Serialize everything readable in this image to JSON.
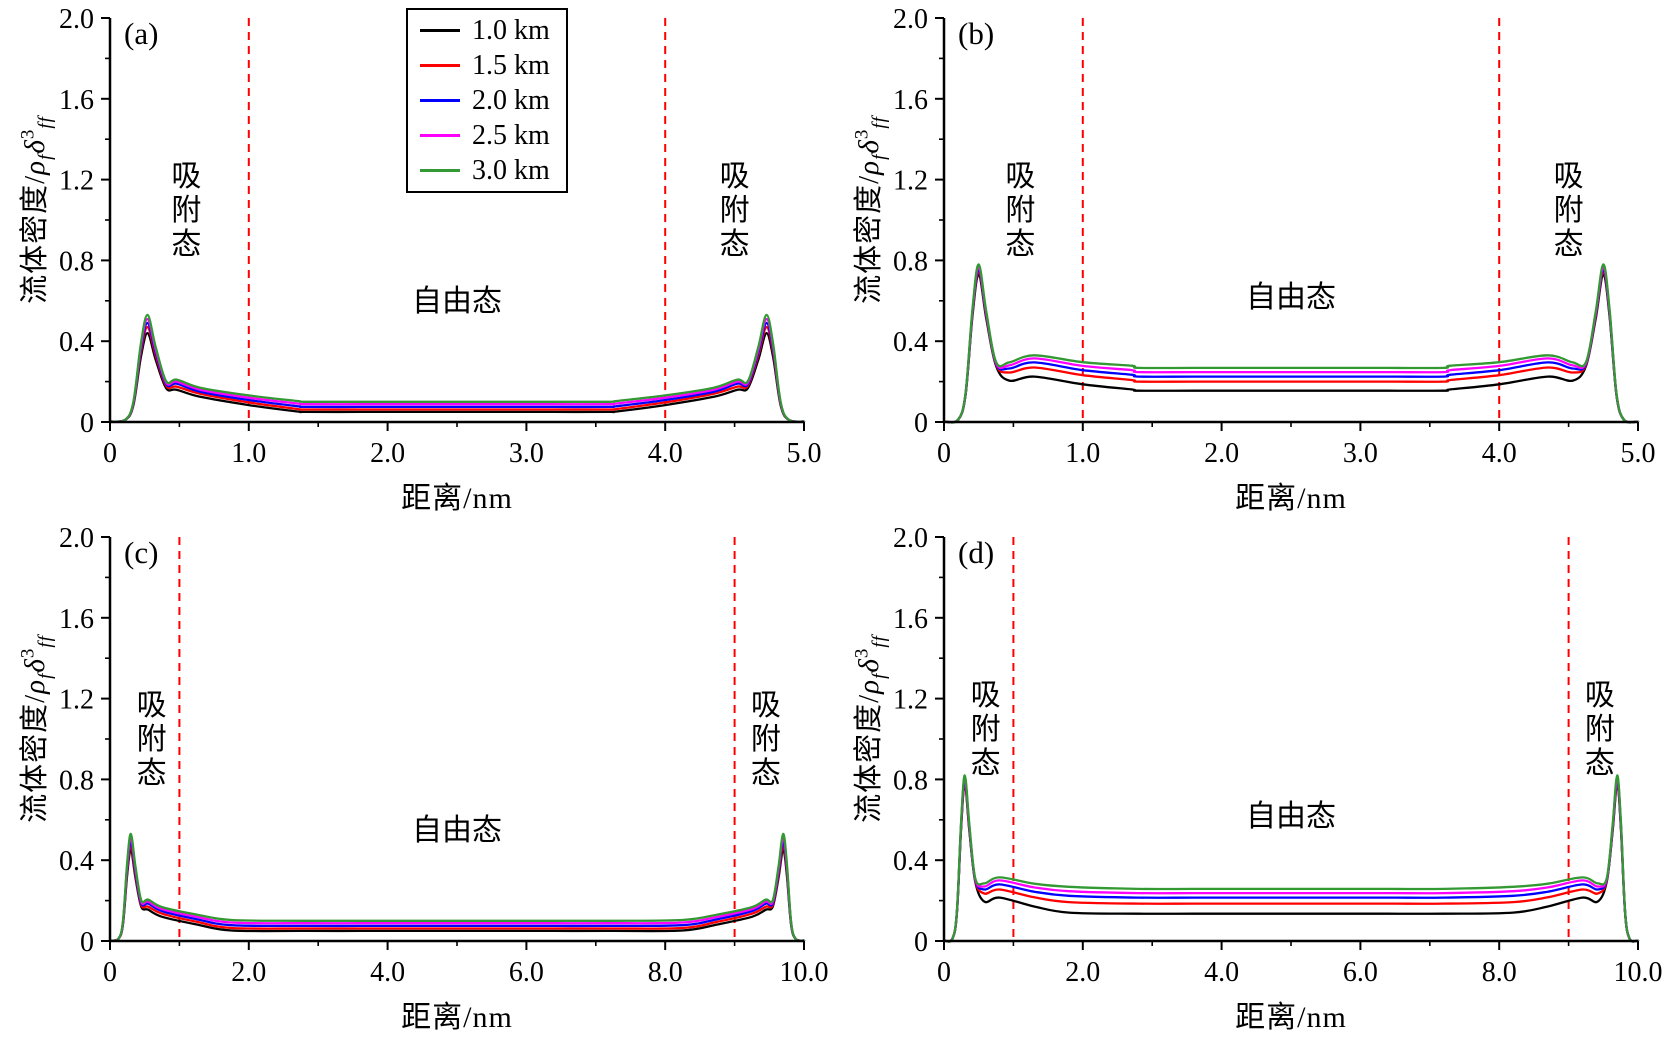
{
  "figure": {
    "background": "#ffffff",
    "grid": "off",
    "legend_position": "top-inside-panel-a"
  },
  "axis": {
    "ylabel_prefix": "流体密度/",
    "rho": "ρ",
    "rho_sub": "f",
    "delta": "δ",
    "delta_sup": "3",
    "delta_sub": "ff",
    "xlabel": "距离/nm"
  },
  "legend": {
    "items": [
      {
        "label": "1.0 km",
        "color": "#000000"
      },
      {
        "label": "1.5 km",
        "color": "#ff0000"
      },
      {
        "label": "2.0 km",
        "color": "#0000ff"
      },
      {
        "label": "2.5 km",
        "color": "#ff00ff"
      },
      {
        "label": "3.0 km",
        "color": "#339933"
      }
    ]
  },
  "chart_data": [
    {
      "type": "line",
      "panel_label": "(a)",
      "xlabel": "距离/nm",
      "ylabel": "流体密度/ρfδ³ff",
      "xlim": [
        0,
        5
      ],
      "ylim": [
        0,
        2
      ],
      "xticks": [
        "0",
        "1.0",
        "2.0",
        "3.0",
        "4.0",
        "5.0"
      ],
      "xtick_values": [
        0,
        1,
        2,
        3,
        4,
        5
      ],
      "yticks": [
        "0",
        "0.4",
        "0.8",
        "1.2",
        "1.6",
        "2.0"
      ],
      "ytick_values": [
        0,
        0.4,
        0.8,
        1.2,
        1.6,
        2.0
      ],
      "minor_x_step": 0.5,
      "minor_y_step": 0.2,
      "dashed_lines_x": [
        1.0,
        4.0
      ],
      "dashed_line_color": "#ff0000",
      "annotations": [
        {
          "text": "吸附态",
          "x": 0.55,
          "y": 1.05,
          "orientation": "vertical"
        },
        {
          "text": "自由态",
          "x": 2.5,
          "y": 0.6,
          "orientation": "horizontal"
        },
        {
          "text": "吸附态",
          "x": 4.5,
          "y": 1.05,
          "orientation": "vertical"
        }
      ],
      "series": [
        {
          "name": "1.0 km",
          "color": "#000000",
          "profile": {
            "peak_x": 0.27,
            "peak_y": 0.44,
            "dip_x": 0.48,
            "dip_y": 0.16,
            "bump_x": 0.65,
            "bump_y": 0.125,
            "plateau_y": 0.05
          }
        },
        {
          "name": "1.5 km",
          "color": "#ff0000",
          "profile": {
            "peak_x": 0.27,
            "peak_y": 0.47,
            "dip_x": 0.48,
            "dip_y": 0.175,
            "bump_x": 0.65,
            "bump_y": 0.14,
            "plateau_y": 0.062
          }
        },
        {
          "name": "2.0 km",
          "color": "#0000ff",
          "profile": {
            "peak_x": 0.27,
            "peak_y": 0.49,
            "dip_x": 0.48,
            "dip_y": 0.19,
            "bump_x": 0.65,
            "bump_y": 0.15,
            "plateau_y": 0.075
          }
        },
        {
          "name": "2.5 km",
          "color": "#ff00ff",
          "profile": {
            "peak_x": 0.27,
            "peak_y": 0.51,
            "dip_x": 0.48,
            "dip_y": 0.2,
            "bump_x": 0.65,
            "bump_y": 0.16,
            "plateau_y": 0.088
          }
        },
        {
          "name": "3.0 km",
          "color": "#339933",
          "profile": {
            "peak_x": 0.27,
            "peak_y": 0.53,
            "dip_x": 0.48,
            "dip_y": 0.21,
            "bump_x": 0.65,
            "bump_y": 0.17,
            "plateau_y": 0.1
          }
        }
      ]
    },
    {
      "type": "line",
      "panel_label": "(b)",
      "xlabel": "距离/nm",
      "ylabel": "流体密度/ρfδ³ff",
      "xlim": [
        0,
        5
      ],
      "ylim": [
        0,
        2
      ],
      "xticks": [
        "0",
        "1.0",
        "2.0",
        "3.0",
        "4.0",
        "5.0"
      ],
      "xtick_values": [
        0,
        1,
        2,
        3,
        4,
        5
      ],
      "yticks": [
        "0",
        "0.4",
        "0.8",
        "1.2",
        "1.6",
        "2.0"
      ],
      "ytick_values": [
        0,
        0.4,
        0.8,
        1.2,
        1.6,
        2.0
      ],
      "minor_x_step": 0.5,
      "minor_y_step": 0.2,
      "dashed_lines_x": [
        1.0,
        4.0
      ],
      "dashed_line_color": "#ff0000",
      "annotations": [
        {
          "text": "吸附态",
          "x": 0.55,
          "y": 1.05,
          "orientation": "vertical"
        },
        {
          "text": "自由态",
          "x": 2.5,
          "y": 0.62,
          "orientation": "horizontal"
        },
        {
          "text": "吸附态",
          "x": 4.5,
          "y": 1.05,
          "orientation": "vertical"
        }
      ],
      "series": [
        {
          "name": "1.0 km",
          "color": "#000000",
          "profile": {
            "peak_x": 0.25,
            "peak_y": 0.73,
            "dip_x": 0.47,
            "dip_y": 0.205,
            "bump_x": 0.65,
            "bump_y": 0.225,
            "plateau_y": 0.155
          }
        },
        {
          "name": "1.5 km",
          "color": "#ff0000",
          "profile": {
            "peak_x": 0.25,
            "peak_y": 0.745,
            "dip_x": 0.47,
            "dip_y": 0.245,
            "bump_x": 0.65,
            "bump_y": 0.27,
            "plateau_y": 0.2
          }
        },
        {
          "name": "2.0 km",
          "color": "#0000ff",
          "profile": {
            "peak_x": 0.25,
            "peak_y": 0.755,
            "dip_x": 0.47,
            "dip_y": 0.265,
            "bump_x": 0.65,
            "bump_y": 0.295,
            "plateau_y": 0.225
          }
        },
        {
          "name": "2.5 km",
          "color": "#ff00ff",
          "profile": {
            "peak_x": 0.25,
            "peak_y": 0.765,
            "dip_x": 0.47,
            "dip_y": 0.28,
            "bump_x": 0.65,
            "bump_y": 0.315,
            "plateau_y": 0.247
          }
        },
        {
          "name": "3.0 km",
          "color": "#339933",
          "profile": {
            "peak_x": 0.25,
            "peak_y": 0.78,
            "dip_x": 0.47,
            "dip_y": 0.295,
            "bump_x": 0.65,
            "bump_y": 0.33,
            "plateau_y": 0.268
          }
        }
      ]
    },
    {
      "type": "line",
      "panel_label": "(c)",
      "xlabel": "距离/nm",
      "ylabel": "流体密度/ρfδ³ff",
      "xlim": [
        0,
        10
      ],
      "ylim": [
        0,
        2
      ],
      "xticks": [
        "0",
        "2.0",
        "4.0",
        "6.0",
        "8.0",
        "10.0"
      ],
      "xtick_values": [
        0,
        2,
        4,
        6,
        8,
        10
      ],
      "yticks": [
        "0",
        "0.4",
        "0.8",
        "1.2",
        "1.6",
        "2.0"
      ],
      "ytick_values": [
        0,
        0.4,
        0.8,
        1.2,
        1.6,
        2.0
      ],
      "minor_x_step": 1.0,
      "minor_y_step": 0.2,
      "dashed_lines_x": [
        1.0,
        9.0
      ],
      "dashed_line_color": "#ff0000",
      "annotations": [
        {
          "text": "吸附态",
          "x": 0.6,
          "y": 1.0,
          "orientation": "vertical"
        },
        {
          "text": "自由态",
          "x": 5.0,
          "y": 0.55,
          "orientation": "horizontal"
        },
        {
          "text": "吸附态",
          "x": 9.45,
          "y": 1.0,
          "orientation": "vertical"
        }
      ],
      "series": [
        {
          "name": "1.0 km",
          "color": "#000000",
          "profile": {
            "peak_x": 0.3,
            "peak_y": 0.45,
            "dip_x": 0.55,
            "dip_y": 0.155,
            "bump_x": 0.75,
            "bump_y": 0.12,
            "plateau_y": 0.05
          }
        },
        {
          "name": "1.5 km",
          "color": "#ff0000",
          "profile": {
            "peak_x": 0.3,
            "peak_y": 0.47,
            "dip_x": 0.55,
            "dip_y": 0.17,
            "bump_x": 0.75,
            "bump_y": 0.135,
            "plateau_y": 0.062
          }
        },
        {
          "name": "2.0 km",
          "color": "#0000ff",
          "profile": {
            "peak_x": 0.3,
            "peak_y": 0.49,
            "dip_x": 0.55,
            "dip_y": 0.185,
            "bump_x": 0.75,
            "bump_y": 0.148,
            "plateau_y": 0.075
          }
        },
        {
          "name": "2.5 km",
          "color": "#ff00ff",
          "profile": {
            "peak_x": 0.3,
            "peak_y": 0.51,
            "dip_x": 0.55,
            "dip_y": 0.195,
            "bump_x": 0.75,
            "bump_y": 0.158,
            "plateau_y": 0.088
          }
        },
        {
          "name": "3.0 km",
          "color": "#339933",
          "profile": {
            "peak_x": 0.3,
            "peak_y": 0.53,
            "dip_x": 0.55,
            "dip_y": 0.205,
            "bump_x": 0.75,
            "bump_y": 0.168,
            "plateau_y": 0.1
          }
        }
      ]
    },
    {
      "type": "line",
      "panel_label": "(d)",
      "xlabel": "距离/nm",
      "ylabel": "流体密度/ρfδ³ff",
      "xlim": [
        0,
        10
      ],
      "ylim": [
        0,
        2
      ],
      "xticks": [
        "0",
        "2.0",
        "4.0",
        "6.0",
        "8.0",
        "10.0"
      ],
      "xtick_values": [
        0,
        2,
        4,
        6,
        8,
        10
      ],
      "yticks": [
        "0",
        "0.4",
        "0.8",
        "1.2",
        "1.6",
        "2.0"
      ],
      "ytick_values": [
        0,
        0.4,
        0.8,
        1.2,
        1.6,
        2.0
      ],
      "minor_x_step": 1.0,
      "minor_y_step": 0.2,
      "dashed_lines_x": [
        1.0,
        9.0
      ],
      "dashed_line_color": "#ff0000",
      "annotations": [
        {
          "text": "吸附态",
          "x": 0.6,
          "y": 1.05,
          "orientation": "vertical"
        },
        {
          "text": "自由态",
          "x": 5.0,
          "y": 0.62,
          "orientation": "horizontal"
        },
        {
          "text": "吸附态",
          "x": 9.45,
          "y": 1.05,
          "orientation": "vertical"
        }
      ],
      "series": [
        {
          "name": "1.0 km",
          "color": "#000000",
          "profile": {
            "peak_x": 0.3,
            "peak_y": 0.775,
            "dip_x": 0.58,
            "dip_y": 0.195,
            "bump_x": 0.8,
            "bump_y": 0.215,
            "plateau_y": 0.135
          }
        },
        {
          "name": "1.5 km",
          "color": "#ff0000",
          "profile": {
            "peak_x": 0.3,
            "peak_y": 0.785,
            "dip_x": 0.58,
            "dip_y": 0.235,
            "bump_x": 0.8,
            "bump_y": 0.255,
            "plateau_y": 0.185
          }
        },
        {
          "name": "2.0 km",
          "color": "#0000ff",
          "profile": {
            "peak_x": 0.3,
            "peak_y": 0.795,
            "dip_x": 0.58,
            "dip_y": 0.255,
            "bump_x": 0.8,
            "bump_y": 0.28,
            "plateau_y": 0.215
          }
        },
        {
          "name": "2.5 km",
          "color": "#ff00ff",
          "profile": {
            "peak_x": 0.3,
            "peak_y": 0.805,
            "dip_x": 0.58,
            "dip_y": 0.27,
            "bump_x": 0.8,
            "bump_y": 0.3,
            "plateau_y": 0.237
          }
        },
        {
          "name": "3.0 km",
          "color": "#339933",
          "profile": {
            "peak_x": 0.3,
            "peak_y": 0.82,
            "dip_x": 0.58,
            "dip_y": 0.285,
            "bump_x": 0.8,
            "bump_y": 0.315,
            "plateau_y": 0.258
          }
        }
      ]
    }
  ]
}
